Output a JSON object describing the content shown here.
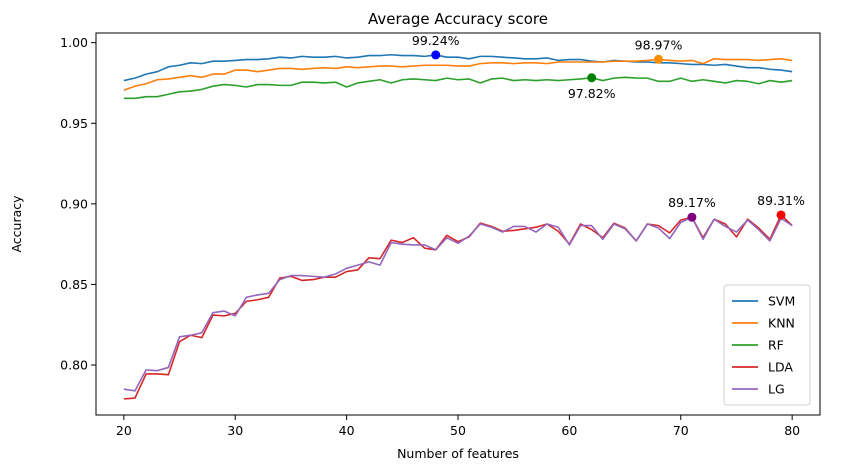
{
  "chart_data": {
    "type": "line",
    "title": "Average Accuracy score",
    "xlabel": "Number of features",
    "ylabel": "Accuracy",
    "xlim": [
      17.5,
      82.5
    ],
    "ylim": [
      0.769,
      1.006
    ],
    "xticks": [
      20,
      30,
      40,
      50,
      60,
      70,
      80
    ],
    "yticks": [
      0.8,
      0.85,
      0.9,
      0.95,
      1.0
    ],
    "ytick_labels": [
      "0.80",
      "0.85",
      "0.90",
      "0.95",
      "1.00"
    ],
    "grid": false,
    "legend_position": "lower-right",
    "x": [
      20,
      21,
      22,
      23,
      24,
      25,
      26,
      27,
      28,
      29,
      30,
      31,
      32,
      33,
      34,
      35,
      36,
      37,
      38,
      39,
      40,
      41,
      42,
      43,
      44,
      45,
      46,
      47,
      48,
      49,
      50,
      51,
      52,
      53,
      54,
      55,
      56,
      57,
      58,
      59,
      60,
      61,
      62,
      63,
      64,
      65,
      66,
      67,
      68,
      69,
      70,
      71,
      72,
      73,
      74,
      75,
      76,
      77,
      78,
      79,
      80
    ],
    "series": [
      {
        "name": "SVM",
        "color": "#1f77b4",
        "values": [
          0.9765,
          0.978,
          0.9805,
          0.982,
          0.985,
          0.986,
          0.9875,
          0.987,
          0.9885,
          0.9885,
          0.989,
          0.9895,
          0.9895,
          0.99,
          0.991,
          0.9905,
          0.9915,
          0.991,
          0.991,
          0.9915,
          0.9905,
          0.991,
          0.992,
          0.992,
          0.9925,
          0.992,
          0.992,
          0.9915,
          0.9924,
          0.991,
          0.991,
          0.99,
          0.9915,
          0.9915,
          0.991,
          0.9905,
          0.99,
          0.99,
          0.9905,
          0.989,
          0.9895,
          0.9895,
          0.9885,
          0.988,
          0.989,
          0.9885,
          0.988,
          0.988,
          0.9875,
          0.9875,
          0.987,
          0.9865,
          0.9865,
          0.986,
          0.9865,
          0.9855,
          0.9845,
          0.9845,
          0.9835,
          0.983,
          0.982
        ]
      },
      {
        "name": "KNN",
        "color": "#ff7f0e",
        "values": [
          0.9705,
          0.973,
          0.9745,
          0.977,
          0.9775,
          0.9785,
          0.9795,
          0.9785,
          0.9805,
          0.9805,
          0.983,
          0.983,
          0.982,
          0.983,
          0.984,
          0.984,
          0.9835,
          0.984,
          0.9845,
          0.984,
          0.985,
          0.9845,
          0.985,
          0.9855,
          0.9855,
          0.985,
          0.9855,
          0.986,
          0.986,
          0.986,
          0.9855,
          0.9855,
          0.987,
          0.9875,
          0.9875,
          0.987,
          0.9875,
          0.9875,
          0.987,
          0.988,
          0.988,
          0.988,
          0.988,
          0.988,
          0.9885,
          0.9885,
          0.9885,
          0.989,
          0.9897,
          0.989,
          0.9885,
          0.989,
          0.987,
          0.99,
          0.9895,
          0.9895,
          0.9895,
          0.989,
          0.9895,
          0.99,
          0.989
        ]
      },
      {
        "name": "RF",
        "color": "#2ca02c",
        "values": [
          0.9655,
          0.9655,
          0.9665,
          0.9665,
          0.968,
          0.9695,
          0.97,
          0.971,
          0.973,
          0.974,
          0.9735,
          0.9725,
          0.974,
          0.974,
          0.9735,
          0.9735,
          0.9755,
          0.9755,
          0.975,
          0.9755,
          0.9725,
          0.975,
          0.976,
          0.977,
          0.975,
          0.977,
          0.9775,
          0.977,
          0.9765,
          0.978,
          0.977,
          0.9775,
          0.975,
          0.9775,
          0.978,
          0.9765,
          0.977,
          0.9765,
          0.977,
          0.9765,
          0.977,
          0.9775,
          0.9782,
          0.9765,
          0.978,
          0.9785,
          0.978,
          0.978,
          0.976,
          0.976,
          0.978,
          0.976,
          0.977,
          0.976,
          0.975,
          0.9765,
          0.976,
          0.9745,
          0.9765,
          0.9755,
          0.9765
        ]
      },
      {
        "name": "LDA",
        "color": "#d62728",
        "values": [
          0.779,
          0.7795,
          0.7945,
          0.7945,
          0.794,
          0.8145,
          0.8185,
          0.817,
          0.831,
          0.8305,
          0.832,
          0.8395,
          0.8405,
          0.842,
          0.854,
          0.855,
          0.8525,
          0.853,
          0.8545,
          0.8545,
          0.858,
          0.859,
          0.8665,
          0.866,
          0.8775,
          0.876,
          0.879,
          0.8725,
          0.8715,
          0.8805,
          0.8765,
          0.8795,
          0.888,
          0.886,
          0.883,
          0.8835,
          0.8845,
          0.8855,
          0.8875,
          0.883,
          0.875,
          0.8875,
          0.884,
          0.879,
          0.888,
          0.885,
          0.877,
          0.8875,
          0.8865,
          0.882,
          0.89,
          0.8917,
          0.879,
          0.8905,
          0.8875,
          0.8795,
          0.8905,
          0.885,
          0.878,
          0.8931,
          0.8865
        ]
      },
      {
        "name": "LG",
        "color": "#9467bd",
        "values": [
          0.785,
          0.784,
          0.797,
          0.7965,
          0.7985,
          0.8175,
          0.8185,
          0.82,
          0.8325,
          0.8335,
          0.8305,
          0.842,
          0.8435,
          0.8445,
          0.853,
          0.8555,
          0.8555,
          0.855,
          0.8545,
          0.8565,
          0.86,
          0.862,
          0.864,
          0.862,
          0.876,
          0.875,
          0.8745,
          0.8745,
          0.8715,
          0.879,
          0.8755,
          0.88,
          0.8875,
          0.8855,
          0.8825,
          0.886,
          0.886,
          0.8825,
          0.8875,
          0.8855,
          0.8745,
          0.8865,
          0.8865,
          0.878,
          0.8875,
          0.8845,
          0.877,
          0.8875,
          0.885,
          0.8785,
          0.8885,
          0.8917,
          0.878,
          0.8905,
          0.886,
          0.8825,
          0.89,
          0.884,
          0.877,
          0.891,
          0.8865
        ]
      }
    ],
    "annotations": [
      {
        "series": "SVM",
        "x": 48,
        "y": 0.9924,
        "text": "99.24%",
        "placement": "above",
        "color": "#0000ff"
      },
      {
        "series": "KNN",
        "x": 68,
        "y": 0.9897,
        "text": "98.97%",
        "placement": "above",
        "color": "#ff8c00"
      },
      {
        "series": "RF",
        "x": 62,
        "y": 0.9782,
        "text": "97.82%",
        "placement": "below",
        "color": "#008000"
      },
      {
        "series": "LDA",
        "x": 79,
        "y": 0.8931,
        "text": "89.31%",
        "placement": "above",
        "color": "#ff0000"
      },
      {
        "series": "LG",
        "x": 71,
        "y": 0.8917,
        "text": "89.17%",
        "placement": "above",
        "color": "#800080"
      }
    ]
  }
}
